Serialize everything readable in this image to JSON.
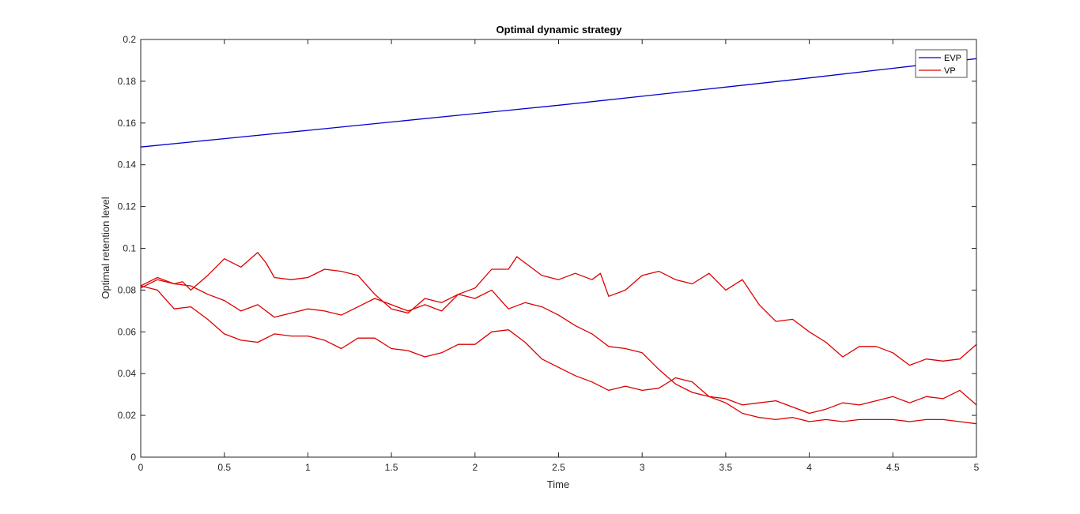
{
  "chart_data": {
    "type": "line",
    "title": "Optimal dynamic strategy",
    "xlabel": "Time",
    "ylabel": "Optimal retention level",
    "xlim": [
      0,
      5
    ],
    "ylim": [
      0,
      0.2
    ],
    "xticks": [
      0,
      0.5,
      1,
      1.5,
      2,
      2.5,
      3,
      3.5,
      4,
      4.5,
      5
    ],
    "xtick_labels": [
      "0",
      "0.5",
      "1",
      "1.5",
      "2",
      "2.5",
      "3",
      "3.5",
      "4",
      "4.5",
      "5"
    ],
    "yticks": [
      0,
      0.02,
      0.04,
      0.06,
      0.08,
      0.1,
      0.12,
      0.14,
      0.16,
      0.18,
      0.2
    ],
    "ytick_labels": [
      "0",
      "0.02",
      "0.04",
      "0.06",
      "0.08",
      "0.1",
      "0.12",
      "0.14",
      "0.16",
      "0.18",
      "0.2"
    ],
    "grid": false,
    "legend_position": "top-right",
    "legend": [
      {
        "label": "EVP",
        "color": "#0000cc"
      },
      {
        "label": "VP",
        "color": "#dd0000"
      }
    ],
    "series": [
      {
        "name": "EVP",
        "color": "#0000cc",
        "x": [
          0,
          0.5,
          1,
          1.5,
          2,
          2.5,
          3,
          3.5,
          4,
          4.5,
          5
        ],
        "values": [
          0.1485,
          0.1525,
          0.1565,
          0.1605,
          0.1645,
          0.1685,
          0.1728,
          0.1772,
          0.1816,
          0.1862,
          0.1908
        ]
      },
      {
        "name": "VP",
        "color": "#dd0000",
        "x": [
          0,
          0.1,
          0.2,
          0.25,
          0.3,
          0.4,
          0.5,
          0.6,
          0.7,
          0.75,
          0.8,
          0.9,
          1,
          1.1,
          1.2,
          1.3,
          1.4,
          1.5,
          1.6,
          1.7,
          1.8,
          1.9,
          2,
          2.1,
          2.2,
          2.25,
          2.3,
          2.4,
          2.5,
          2.6,
          2.7,
          2.75,
          2.8,
          2.9,
          3,
          3.1,
          3.2,
          3.3,
          3.4,
          3.5,
          3.6,
          3.7,
          3.8,
          3.9,
          4,
          4.1,
          4.2,
          4.3,
          4.4,
          4.5,
          4.6,
          4.7,
          4.8,
          4.9,
          5
        ],
        "values": [
          0.081,
          0.085,
          0.083,
          0.084,
          0.08,
          0.087,
          0.095,
          0.091,
          0.098,
          0.093,
          0.086,
          0.085,
          0.086,
          0.09,
          0.089,
          0.087,
          0.078,
          0.071,
          0.069,
          0.076,
          0.074,
          0.078,
          0.081,
          0.09,
          0.09,
          0.096,
          0.093,
          0.087,
          0.085,
          0.088,
          0.085,
          0.088,
          0.077,
          0.08,
          0.087,
          0.089,
          0.085,
          0.083,
          0.088,
          0.08,
          0.085,
          0.073,
          0.065,
          0.066,
          0.06,
          0.055,
          0.048,
          0.053,
          0.053,
          0.05,
          0.044,
          0.047,
          0.046,
          0.047,
          0.054
        ]
      },
      {
        "name": "VP",
        "color": "#dd0000",
        "x": [
          0,
          0.1,
          0.2,
          0.3,
          0.4,
          0.5,
          0.6,
          0.7,
          0.8,
          0.9,
          1,
          1.1,
          1.2,
          1.3,
          1.4,
          1.5,
          1.6,
          1.7,
          1.8,
          1.9,
          2,
          2.1,
          2.2,
          2.3,
          2.4,
          2.5,
          2.6,
          2.7,
          2.8,
          2.9,
          3,
          3.1,
          3.2,
          3.3,
          3.4,
          3.5,
          3.6,
          3.7,
          3.8,
          3.9,
          4,
          4.1,
          4.2,
          4.3,
          4.4,
          4.5,
          4.6,
          4.7,
          4.8,
          4.9,
          5
        ],
        "values": [
          0.082,
          0.086,
          0.083,
          0.082,
          0.078,
          0.075,
          0.07,
          0.073,
          0.067,
          0.069,
          0.071,
          0.07,
          0.068,
          0.072,
          0.076,
          0.073,
          0.07,
          0.073,
          0.07,
          0.078,
          0.076,
          0.08,
          0.071,
          0.074,
          0.072,
          0.068,
          0.063,
          0.059,
          0.053,
          0.052,
          0.05,
          0.042,
          0.035,
          0.031,
          0.029,
          0.028,
          0.025,
          0.026,
          0.027,
          0.024,
          0.021,
          0.023,
          0.026,
          0.025,
          0.027,
          0.029,
          0.026,
          0.029,
          0.028,
          0.032,
          0.025
        ]
      },
      {
        "name": "VP",
        "color": "#dd0000",
        "x": [
          0,
          0.1,
          0.2,
          0.3,
          0.4,
          0.5,
          0.6,
          0.7,
          0.8,
          0.9,
          1,
          1.1,
          1.2,
          1.3,
          1.4,
          1.5,
          1.6,
          1.7,
          1.8,
          1.9,
          2,
          2.1,
          2.2,
          2.3,
          2.4,
          2.5,
          2.6,
          2.7,
          2.8,
          2.9,
          3,
          3.1,
          3.2,
          3.3,
          3.4,
          3.5,
          3.6,
          3.7,
          3.8,
          3.9,
          4,
          4.1,
          4.2,
          4.3,
          4.4,
          4.5,
          4.6,
          4.7,
          4.8,
          4.9,
          5
        ],
        "values": [
          0.082,
          0.08,
          0.071,
          0.072,
          0.066,
          0.059,
          0.056,
          0.055,
          0.059,
          0.058,
          0.058,
          0.056,
          0.052,
          0.057,
          0.057,
          0.052,
          0.051,
          0.048,
          0.05,
          0.054,
          0.054,
          0.06,
          0.061,
          0.055,
          0.047,
          0.043,
          0.039,
          0.036,
          0.032,
          0.034,
          0.032,
          0.033,
          0.038,
          0.036,
          0.029,
          0.026,
          0.021,
          0.019,
          0.018,
          0.019,
          0.017,
          0.018,
          0.017,
          0.018,
          0.018,
          0.018,
          0.017,
          0.018,
          0.018,
          0.017,
          0.016
        ]
      }
    ]
  }
}
